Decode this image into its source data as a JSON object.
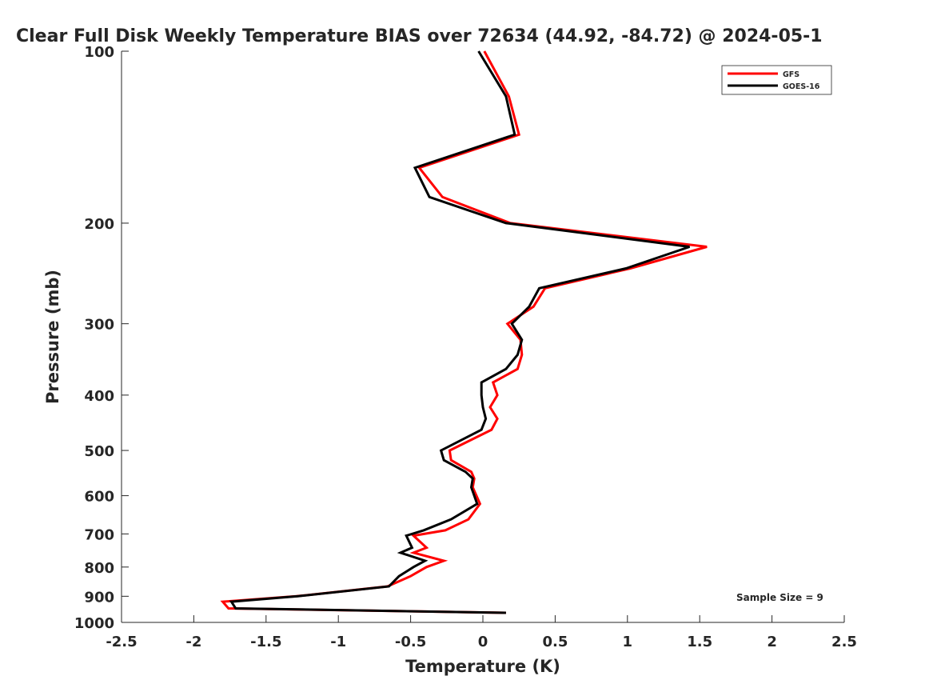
{
  "chart_data": {
    "type": "line",
    "title": "Clear Full Disk Weekly Temperature BIAS over 72634 (44.92, -84.72) @ 2024-05-1",
    "xlabel": "Temperature (K)",
    "ylabel": "Pressure (mb)",
    "xlim": [
      -2.5,
      2.5
    ],
    "ylim": [
      100,
      1000
    ],
    "yscale": "log",
    "y_reversed": true,
    "xticks": [
      -2.5,
      -2,
      -1.5,
      -1,
      -0.5,
      0,
      0.5,
      1,
      1.5,
      2,
      2.5
    ],
    "xtick_labels": [
      "-2.5",
      "-2",
      "-1.5",
      "-1",
      "-0.5",
      "0",
      "0.5",
      "1",
      "1.5",
      "2",
      "2.5"
    ],
    "yticks": [
      100,
      200,
      300,
      400,
      500,
      600,
      700,
      800,
      900,
      1000
    ],
    "ytick_labels": [
      "100",
      "200",
      "300",
      "400",
      "500",
      "600",
      "700",
      "800",
      "900",
      "1000"
    ],
    "legend_position": "top-right",
    "annotation": "Sample Size = 9",
    "pressure": [
      100,
      120,
      140,
      160,
      180,
      200,
      220,
      240,
      260,
      280,
      300,
      320,
      340,
      360,
      380,
      400,
      420,
      440,
      460,
      500,
      520,
      545,
      560,
      580,
      620,
      660,
      690,
      705,
      740,
      755,
      780,
      800,
      830,
      865,
      900,
      920,
      945,
      962
    ],
    "series": [
      {
        "name": "GFS",
        "color": "#ff0000",
        "values": [
          0.01,
          0.18,
          0.25,
          -0.44,
          -0.28,
          0.19,
          1.55,
          1.02,
          0.43,
          0.35,
          0.17,
          0.26,
          0.27,
          0.24,
          0.07,
          0.1,
          0.05,
          0.1,
          0.06,
          -0.23,
          -0.22,
          -0.08,
          -0.06,
          -0.07,
          -0.02,
          -0.1,
          -0.26,
          -0.48,
          -0.39,
          -0.48,
          -0.27,
          -0.39,
          -0.5,
          -0.66,
          -1.29,
          -1.8,
          -1.76,
          0.16
        ]
      },
      {
        "name": "GOES-16",
        "color": "#000000",
        "values": [
          -0.03,
          0.16,
          0.22,
          -0.47,
          -0.37,
          0.16,
          1.43,
          0.99,
          0.39,
          0.32,
          0.2,
          0.27,
          0.24,
          0.16,
          -0.01,
          -0.01,
          0.0,
          0.02,
          -0.01,
          -0.29,
          -0.27,
          -0.12,
          -0.07,
          -0.08,
          -0.04,
          -0.22,
          -0.41,
          -0.53,
          -0.49,
          -0.57,
          -0.4,
          -0.48,
          -0.58,
          -0.65,
          -1.28,
          -1.74,
          -1.71,
          0.16
        ]
      }
    ]
  }
}
